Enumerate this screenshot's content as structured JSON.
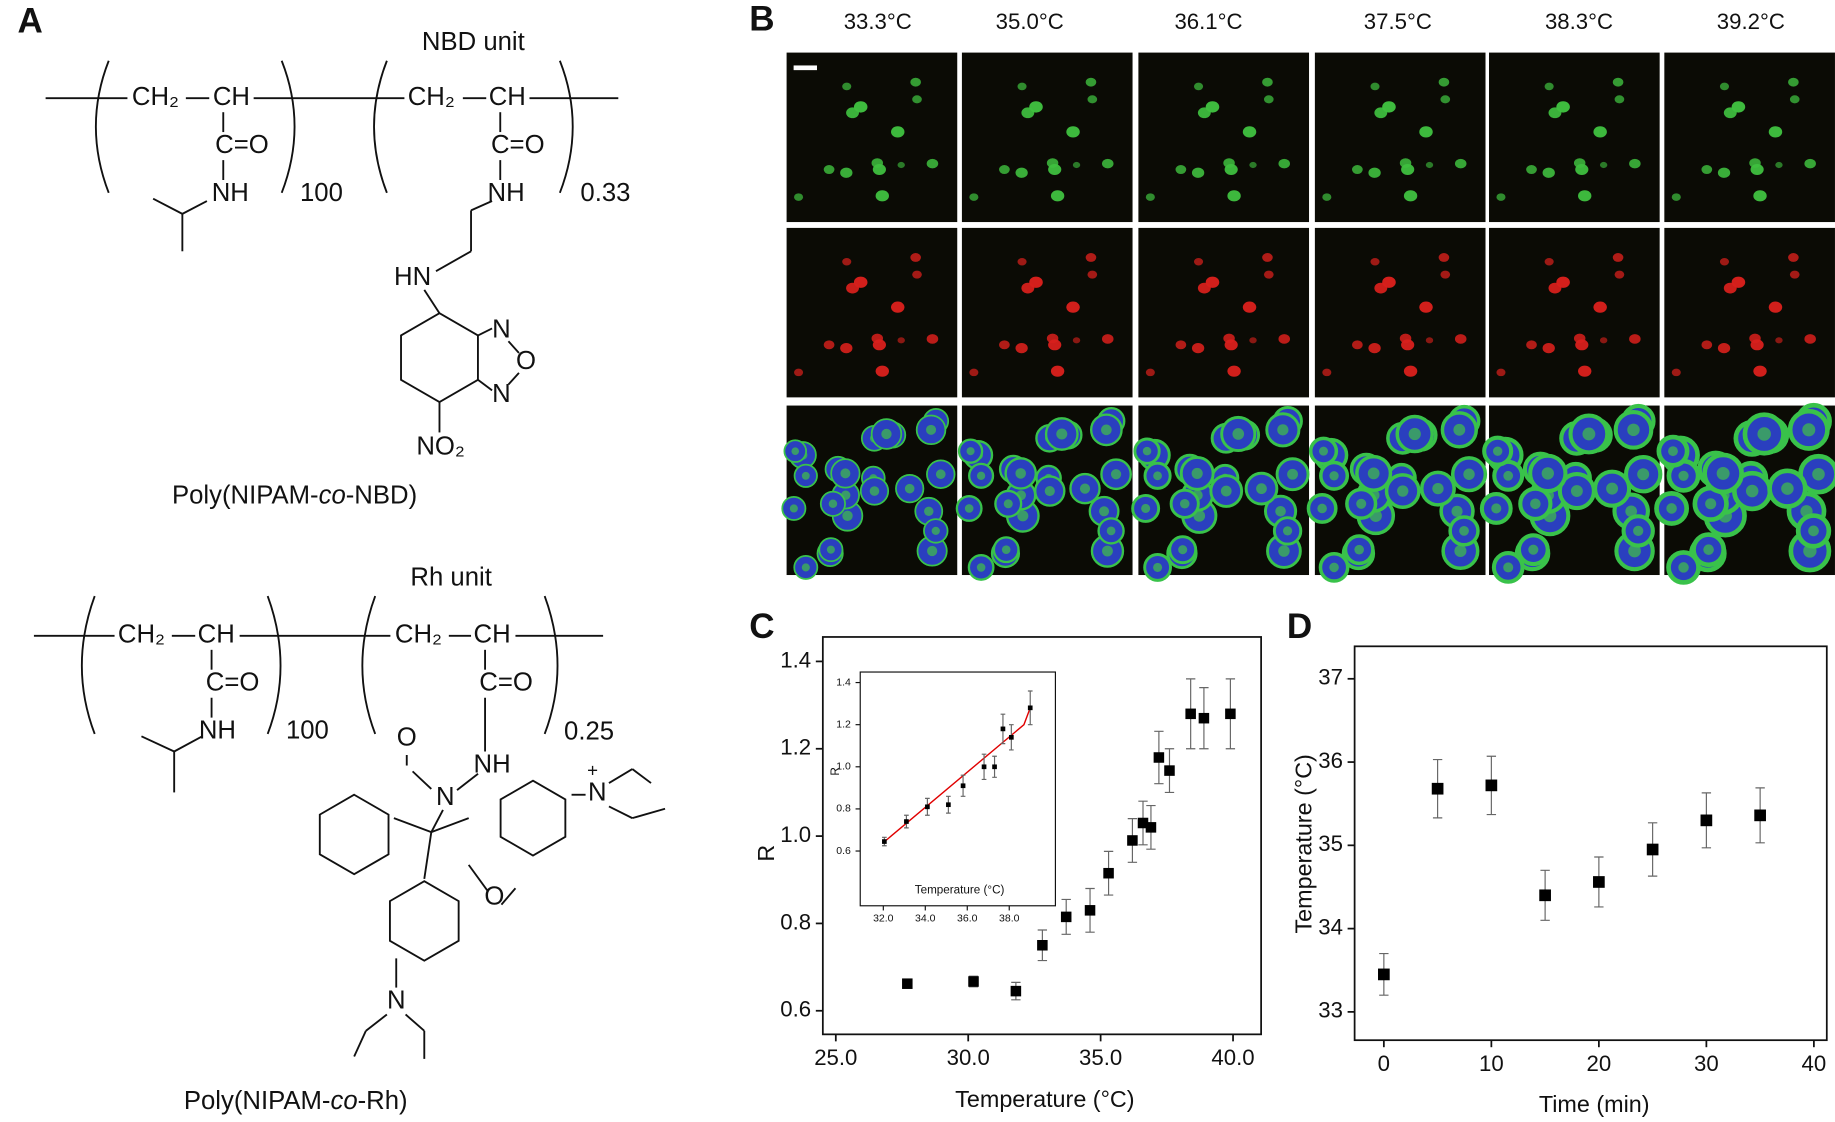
{
  "panels": {
    "a": "A",
    "b": "B",
    "c": "C",
    "d": "D"
  },
  "panel_a": {
    "structures": [
      {
        "unit": "NBD unit",
        "caption": [
          "Poly(NIPAM-",
          "co",
          "-NBD)"
        ],
        "subscripts": [
          "100",
          "0.33"
        ],
        "atoms": [
          "CH₂",
          "CH",
          "C=O",
          "NH",
          "CH₂",
          "CH",
          "C=O",
          "NH",
          "HN",
          "N",
          "O",
          "N",
          "NO₂"
        ]
      },
      {
        "unit": "Rh unit",
        "caption": [
          "Poly(NIPAM-",
          "co",
          "-Rh)"
        ],
        "subscripts": [
          "100",
          "0.25"
        ],
        "atoms": [
          "CH₂",
          "CH",
          "C=O",
          "NH",
          "CH₂",
          "CH",
          "C=O",
          "NH",
          "O",
          "N",
          "O",
          "N",
          "N",
          "+"
        ]
      }
    ]
  },
  "panel_b": {
    "temperatures": [
      "33.3°C",
      "35.0°C",
      "36.1°C",
      "37.5°C",
      "38.3°C",
      "39.2°C"
    ]
  },
  "chart_data": [
    {
      "type": "scatter",
      "xlabel": "Temperature (°C)",
      "ylabel": "R",
      "x": [
        27.7,
        30.2,
        31.8,
        32.8,
        33.7,
        34.6,
        35.3,
        36.2,
        36.6,
        36.9,
        37.2,
        37.6,
        38.4,
        38.9,
        39.9
      ],
      "series": [
        {
          "color": "#000000",
          "values": [
            0.662,
            0.667,
            0.645,
            0.75,
            0.815,
            0.83,
            0.915,
            0.99,
            1.03,
            1.02,
            1.18,
            1.15,
            1.28,
            1.27,
            1.28
          ],
          "errors": [
            0.01,
            0.012,
            0.02,
            0.035,
            0.04,
            0.05,
            0.05,
            0.05,
            0.05,
            0.05,
            0.06,
            0.05,
            0.08,
            0.07,
            0.08
          ]
        }
      ],
      "xlim": [
        24.51,
        41.06
      ],
      "ylim": [
        0.546,
        1.456
      ],
      "xticks": [
        {
          "value": 25,
          "label": "25.0"
        },
        {
          "value": 30,
          "label": "30.0"
        },
        {
          "value": 35,
          "label": "35.0"
        },
        {
          "value": 40,
          "label": "40.0"
        }
      ],
      "yticks": [
        0.6,
        0.8,
        {
          "value": 1,
          "label": "1.0"
        },
        1.2,
        1.4
      ]
    },
    {
      "type": "scatter",
      "xlabel": "Temperature (°C)",
      "ylabel": "R",
      "x": [
        32.05,
        33.1,
        34.1,
        35.1,
        35.8,
        36.8,
        37.3,
        37.7,
        38.1,
        39.0
      ],
      "series": [
        {
          "color": "#000000",
          "values": [
            0.645,
            0.74,
            0.81,
            0.82,
            0.91,
            1.0,
            1.0,
            1.18,
            1.14,
            1.28
          ],
          "errors": [
            0.02,
            0.03,
            0.04,
            0.04,
            0.05,
            0.06,
            0.05,
            0.07,
            0.06,
            0.08
          ]
        }
      ],
      "fit": {
        "x": [
          32,
          38.7,
          39.0
        ],
        "values": [
          0.64,
          1.2,
          1.28
        ],
        "color": "#e00000"
      },
      "xlim": [
        30.9,
        40.2
      ],
      "ylim": [
        0.34,
        1.45
      ],
      "xticks": [
        {
          "value": 32,
          "label": "32.0"
        },
        {
          "value": 34,
          "label": "34.0"
        },
        {
          "value": 36,
          "label": "36.0"
        },
        {
          "value": 38,
          "label": "38.0"
        }
      ],
      "yticks": [
        0.6,
        0.8,
        {
          "value": 1,
          "label": "1.0"
        },
        1.2,
        1.4
      ]
    },
    {
      "type": "scatter",
      "xlabel": "Time (min)",
      "ylabel": "Temperature (°C)",
      "x": [
        0,
        5,
        10,
        15,
        20,
        25,
        30,
        35
      ],
      "series": [
        {
          "color": "#000000",
          "values": [
            33.45,
            35.68,
            35.72,
            34.4,
            34.56,
            34.95,
            35.3,
            35.36
          ],
          "errors": [
            0.25,
            0.35,
            0.35,
            0.3,
            0.3,
            0.32,
            0.33,
            0.33
          ]
        }
      ],
      "xlim": [
        -2.72,
        41.2
      ],
      "ylim": [
        32.66,
        37.39
      ],
      "xticks": [
        0,
        10,
        20,
        30,
        40
      ],
      "yticks": [
        33,
        34,
        35,
        36,
        37
      ]
    }
  ]
}
